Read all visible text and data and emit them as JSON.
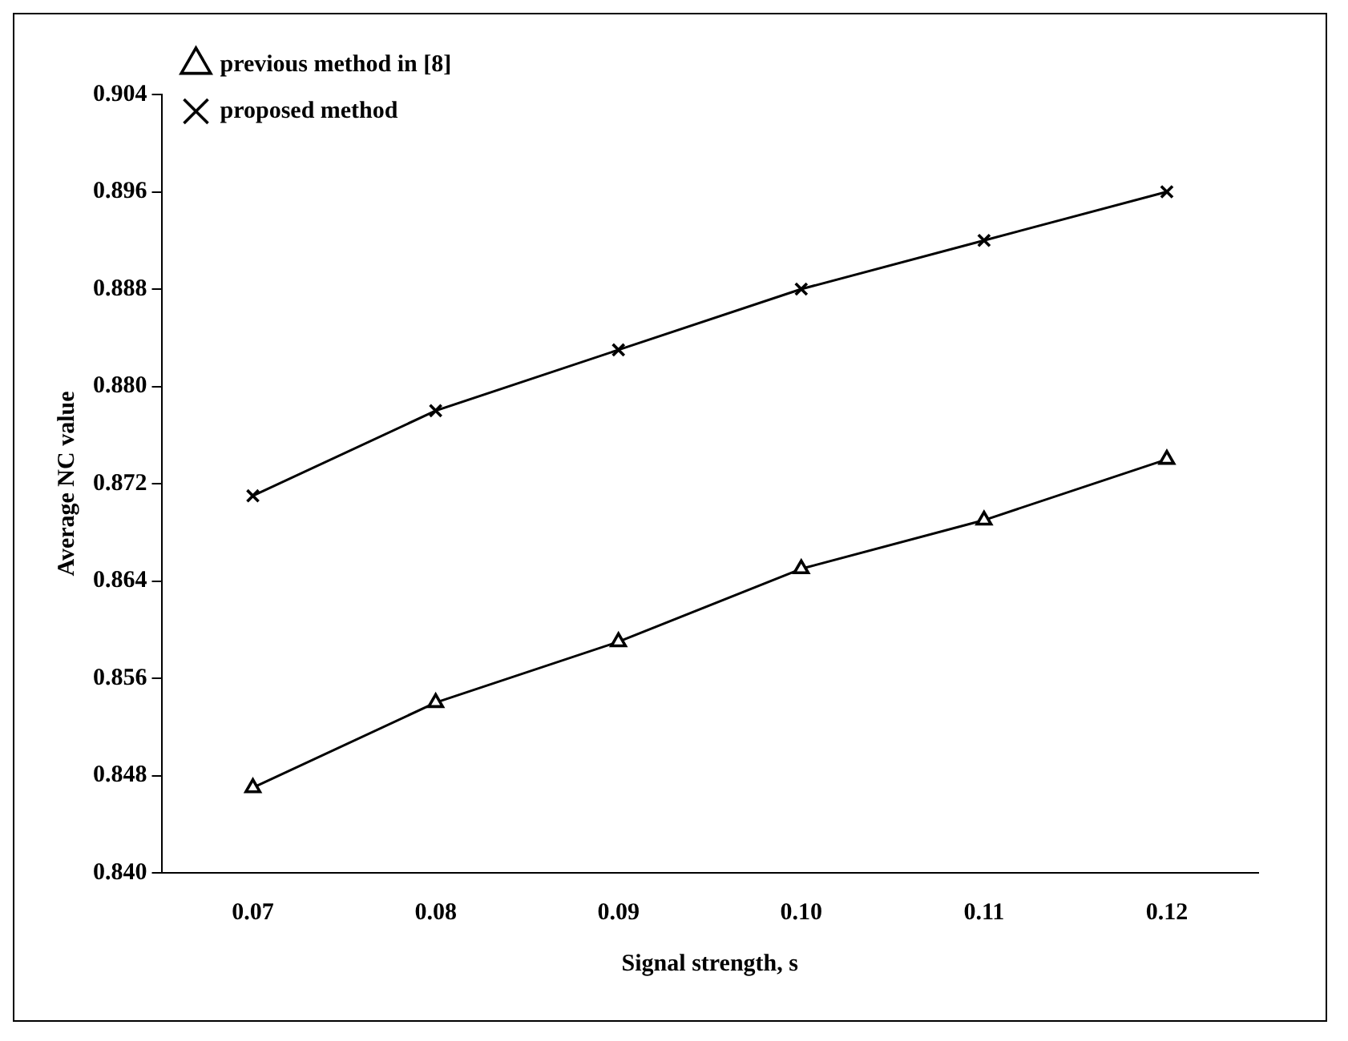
{
  "chart_data": {
    "type": "line",
    "xlabel": "Signal strength, s",
    "ylabel": "Average NC value",
    "categories": [
      "0.07",
      "0.08",
      "0.09",
      "0.10",
      "0.11",
      "0.12"
    ],
    "series": [
      {
        "name": "previous method in [8]",
        "color": "#000000",
        "marker": "triangle",
        "values": [
          0.847,
          0.854,
          0.859,
          0.865,
          0.869,
          0.874
        ]
      },
      {
        "name": "proposed method",
        "color": "#000000",
        "marker": "cross",
        "values": [
          0.871,
          0.878,
          0.883,
          0.888,
          0.892,
          0.896
        ]
      }
    ],
    "ylim": [
      0.84,
      0.904
    ],
    "yticks": [
      {
        "value": 0.84,
        "label": "0.840"
      },
      {
        "value": 0.848,
        "label": "0.848"
      },
      {
        "value": 0.856,
        "label": "0.856"
      },
      {
        "value": 0.864,
        "label": "0.864"
      },
      {
        "value": 0.872,
        "label": "0.872"
      },
      {
        "value": 0.88,
        "label": "0.880"
      },
      {
        "value": 0.888,
        "label": "0.888"
      },
      {
        "value": 0.896,
        "label": "0.896"
      },
      {
        "value": 0.904,
        "label": "0.904"
      }
    ],
    "grid": false,
    "legend": "top left",
    "line_style": "solid"
  }
}
